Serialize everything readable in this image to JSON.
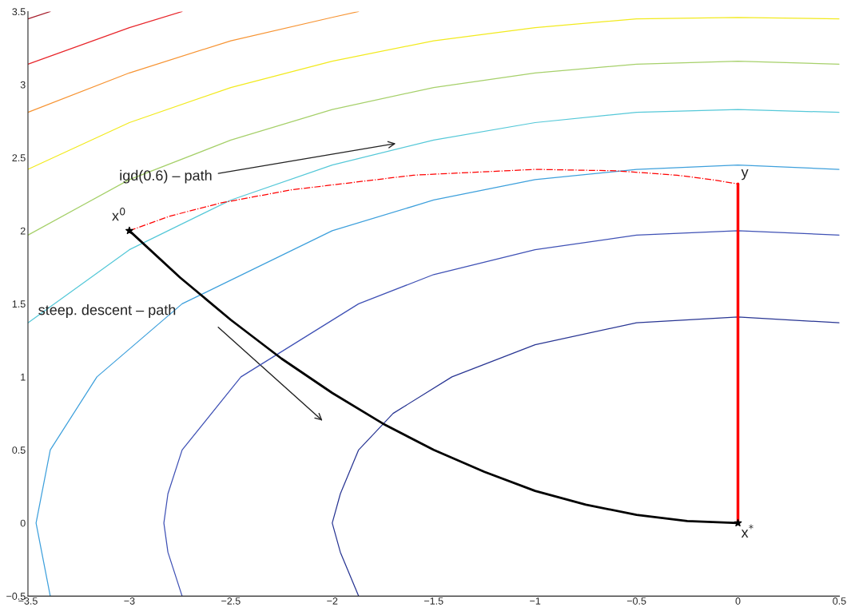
{
  "chart_data": {
    "type": "line",
    "xlim": [
      -3.5,
      0.5
    ],
    "ylim": [
      -0.5,
      3.5
    ],
    "xticks": [
      {
        "value": -3.5,
        "label": "−3.5"
      },
      {
        "value": -3,
        "label": "−3"
      },
      {
        "value": -2.5,
        "label": "−2.5"
      },
      {
        "value": -2,
        "label": "−2"
      },
      {
        "value": -1.5,
        "label": "−1.5"
      },
      {
        "value": -1,
        "label": "−1"
      },
      {
        "value": -0.5,
        "label": "−0.5"
      },
      0,
      0.5
    ],
    "yticks": [
      {
        "value": -0.5,
        "label": "−0.5"
      },
      0,
      0.5,
      1,
      1.5,
      2,
      2.5,
      3,
      3.5
    ],
    "grid": false,
    "legend": false,
    "marker": "none",
    "series": [
      {
        "color": "#283593",
        "line_style": "solid",
        "x": [
          -1.87,
          -1.96,
          -2,
          -1.96,
          -1.87,
          -1.7,
          -1.41,
          -1.0,
          -0.5,
          0,
          0.5
        ],
        "values": [
          -0.5,
          -0.2,
          0,
          0.2,
          0.5,
          0.75,
          1,
          1.22,
          1.37,
          1.41,
          1.37
        ]
      },
      {
        "color": "#3f51b5",
        "line_style": "solid",
        "x": [
          -2.74,
          -2.81,
          -2.83,
          -2.81,
          -2.74,
          -2.45,
          -1.87,
          -1.5,
          -1,
          -0.5,
          0,
          0.5
        ],
        "values": [
          -0.5,
          -0.2,
          0,
          0.2,
          0.5,
          1,
          1.5,
          1.7,
          1.87,
          1.97,
          2,
          1.97
        ]
      },
      {
        "color": "#3ea0dc",
        "line_style": "solid",
        "x": [
          -3.39,
          -3.46,
          -3.39,
          -3.16,
          -2.74,
          -2,
          -1.5,
          -1,
          -0.5,
          0,
          0.5
        ],
        "values": [
          -0.5,
          0,
          0.5,
          1,
          1.5,
          2,
          2.21,
          2.35,
          2.42,
          2.45,
          2.42
        ]
      },
      {
        "color": "#55c8d8",
        "line_style": "solid",
        "x": [
          -3.5,
          -3,
          -2.5,
          -2,
          -1.5,
          -1,
          -0.5,
          0,
          0.5
        ],
        "values": [
          1.37,
          1.87,
          2.21,
          2.45,
          2.62,
          2.74,
          2.81,
          2.83,
          2.81
        ]
      },
      {
        "color": "#a6d06a",
        "line_style": "solid",
        "x": [
          -3.5,
          -3,
          -2.5,
          -2,
          -1.5,
          -1,
          -0.5,
          0,
          0.5
        ],
        "values": [
          1.97,
          2.35,
          2.62,
          2.83,
          2.98,
          3.08,
          3.14,
          3.16,
          3.14
        ]
      },
      {
        "color": "#f2ea1e",
        "line_style": "solid",
        "x": [
          -3.5,
          -3,
          -2.5,
          -2,
          -1.5,
          -1,
          -0.5,
          0,
          0.5
        ],
        "values": [
          2.42,
          2.74,
          2.98,
          3.16,
          3.3,
          3.39,
          3.45,
          3.46,
          3.45
        ]
      },
      {
        "color": "#f79433",
        "line_style": "solid",
        "x": [
          -3.5,
          -3,
          -2.5,
          -2,
          -1.87
        ],
        "values": [
          2.81,
          3.08,
          3.3,
          3.46,
          3.5
        ]
      },
      {
        "color": "#e8262b",
        "line_style": "solid",
        "x": [
          -3.5,
          -3,
          -2.74
        ],
        "values": [
          3.14,
          3.39,
          3.5
        ]
      },
      {
        "color": "#a61c2a",
        "line_style": "solid",
        "x": [
          -3.5,
          -3.39
        ],
        "values": [
          3.45,
          3.5
        ]
      },
      {
        "color": "#000000",
        "line_style": "solid",
        "x": [
          -3,
          -2.75,
          -2.5,
          -2.25,
          -2,
          -1.75,
          -1.5,
          -1.25,
          -1,
          -0.75,
          -0.5,
          -0.25,
          0
        ],
        "values": [
          2,
          1.68,
          1.39,
          1.125,
          0.89,
          0.68,
          0.5,
          0.35,
          0.22,
          0.125,
          0.056,
          0.014,
          0
        ]
      },
      {
        "color": "#ff0000",
        "line_style": "dashdot",
        "x": [
          -3,
          -2.8,
          -2.55,
          -2.2,
          -1.6,
          -1.0,
          -0.6,
          -0.3,
          -0.13,
          0
        ],
        "values": [
          2,
          2.1,
          2.19,
          2.28,
          2.38,
          2.42,
          2.41,
          2.38,
          2.35,
          2.32
        ]
      },
      {
        "color": "#ff0000",
        "line_style": "solid",
        "x": [
          0,
          0
        ],
        "values": [
          2.32,
          0
        ]
      },
      {
        "type": "scatter",
        "color": "#000000",
        "marker": "star",
        "x": [
          -3,
          0
        ],
        "values": [
          2,
          0
        ]
      }
    ],
    "annotations": [
      "igd(0.6) – path",
      "steep. descent – path",
      "x$^{0}$",
      "y",
      "x$^{*}$"
    ]
  }
}
